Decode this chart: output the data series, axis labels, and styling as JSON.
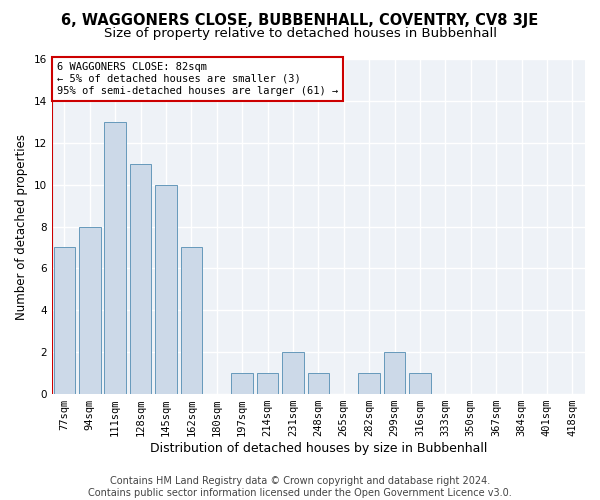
{
  "title": "6, WAGGONERS CLOSE, BUBBENHALL, COVENTRY, CV8 3JE",
  "subtitle": "Size of property relative to detached houses in Bubbenhall",
  "xlabel": "Distribution of detached houses by size in Bubbenhall",
  "ylabel": "Number of detached properties",
  "categories": [
    "77sqm",
    "94sqm",
    "111sqm",
    "128sqm",
    "145sqm",
    "162sqm",
    "180sqm",
    "197sqm",
    "214sqm",
    "231sqm",
    "248sqm",
    "265sqm",
    "282sqm",
    "299sqm",
    "316sqm",
    "333sqm",
    "350sqm",
    "367sqm",
    "384sqm",
    "401sqm",
    "418sqm"
  ],
  "values": [
    7,
    8,
    13,
    11,
    10,
    7,
    0,
    1,
    1,
    2,
    1,
    0,
    1,
    2,
    1,
    0,
    0,
    0,
    0,
    0,
    0
  ],
  "bar_color": "#ccd9e8",
  "bar_edge_color": "#6699bb",
  "highlight_color": "#cc0000",
  "annotation_line1": "6 WAGGONERS CLOSE: 82sqm",
  "annotation_line2": "← 5% of detached houses are smaller (3)",
  "annotation_line3": "95% of semi-detached houses are larger (61) →",
  "annotation_bar_index": 0,
  "ylim": [
    0,
    16
  ],
  "yticks": [
    0,
    2,
    4,
    6,
    8,
    10,
    12,
    14,
    16
  ],
  "background_color": "#eef2f7",
  "grid_color": "#ffffff",
  "footer_line1": "Contains HM Land Registry data © Crown copyright and database right 2024.",
  "footer_line2": "Contains public sector information licensed under the Open Government Licence v3.0.",
  "title_fontsize": 10.5,
  "subtitle_fontsize": 9.5,
  "xlabel_fontsize": 9,
  "ylabel_fontsize": 8.5,
  "tick_fontsize": 7.5,
  "annotation_fontsize": 7.5,
  "footer_fontsize": 7
}
